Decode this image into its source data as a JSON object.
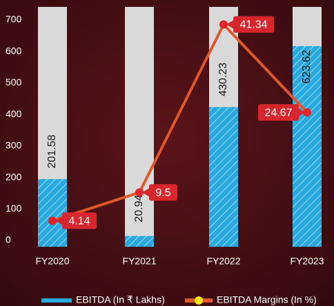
{
  "chart_data": {
    "type": "bar_line",
    "categories": [
      "FY2020",
      "FY2021",
      "FY2022",
      "FY2023"
    ],
    "series": [
      {
        "name": "EBITDA (In ₹ Lakhs)",
        "color": "#2aa8e0",
        "values": [
          201.58,
          20.94,
          430.23,
          623.62
        ]
      },
      {
        "name": "EBITDA Margins (In %)",
        "color": "#e0582a",
        "marker_color": "#e3242b",
        "values": [
          4.14,
          9.5,
          41.34,
          24.67
        ],
        "axis": "y2"
      }
    ],
    "ylim": [
      0,
      700
    ],
    "yticks": [
      0,
      100,
      200,
      300,
      400,
      500,
      600,
      700
    ],
    "y2lim": [
      0,
      41.8
    ]
  }
}
